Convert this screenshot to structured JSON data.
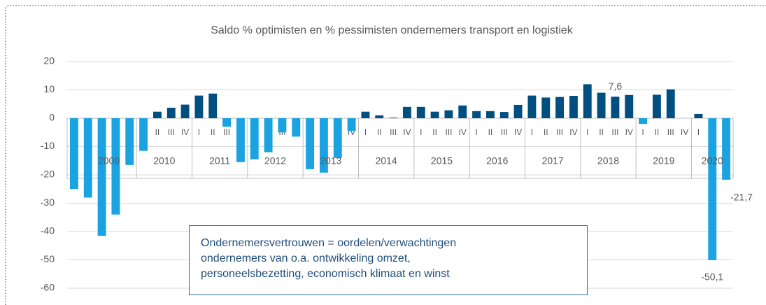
{
  "chart_data": {
    "type": "bar",
    "title": "Saldo % optimisten en % pessimisten ondernemers transport en logistiek",
    "categories": [
      "IV",
      "I",
      "II",
      "III",
      "IV",
      "I",
      "II",
      "III",
      "IV",
      "I",
      "II",
      "III",
      "IV",
      "I",
      "II",
      "III",
      "IV",
      "I",
      "II",
      "III",
      "IV",
      "I",
      "II",
      "III",
      "IV",
      "I",
      "II",
      "III",
      "IV",
      "I",
      "II",
      "III",
      "IV",
      "I",
      "II",
      "III",
      "IV",
      "I",
      "II",
      "III",
      "IV",
      "I",
      "II",
      "III",
      "IV",
      "I",
      "II",
      "III"
    ],
    "years": [
      "2009",
      "2010",
      "2011",
      "2012",
      "2013",
      "2014",
      "2015",
      "2016",
      "2017",
      "2018",
      "2019",
      "2020"
    ],
    "values": [
      -25,
      -28,
      -41.5,
      -34,
      -16.5,
      -11.5,
      2.3,
      3.7,
      4.8,
      8,
      8.7,
      -3,
      -15.5,
      -14.5,
      -12,
      -5,
      -6.5,
      -18,
      -19.2,
      -14,
      -4.5,
      2.3,
      1,
      0.2,
      4,
      4,
      2.3,
      2.8,
      4.5,
      2.5,
      2.5,
      2.2,
      4.7,
      8,
      7.3,
      7.5,
      7.9,
      12,
      9,
      7.6,
      8.2,
      -2,
      8.3,
      10.2,
      0,
      1.5,
      -50.1,
      -21.7
    ],
    "value_labels": [
      null,
      null,
      null,
      null,
      null,
      null,
      null,
      null,
      null,
      null,
      null,
      null,
      null,
      null,
      null,
      null,
      null,
      null,
      null,
      null,
      null,
      null,
      null,
      null,
      null,
      null,
      null,
      null,
      null,
      null,
      null,
      null,
      null,
      null,
      null,
      null,
      null,
      null,
      null,
      "7,6",
      null,
      null,
      null,
      null,
      null,
      null,
      "-50,1",
      "-21,7"
    ],
    "color_positive": "#004f80",
    "color_negative": "#1aa3e0",
    "ylim": [
      -60,
      20
    ],
    "yticks": [
      20,
      10,
      0,
      -10,
      -20,
      -30,
      -40,
      -50,
      -60
    ],
    "grid": true,
    "annotation": [
      "Ondernemersvertrouwen = oordelen/verwachtingen",
      "ondernemers van o.a. ontwikkeling omzet,",
      "personeelsbezetting, economisch klimaat en winst"
    ]
  }
}
